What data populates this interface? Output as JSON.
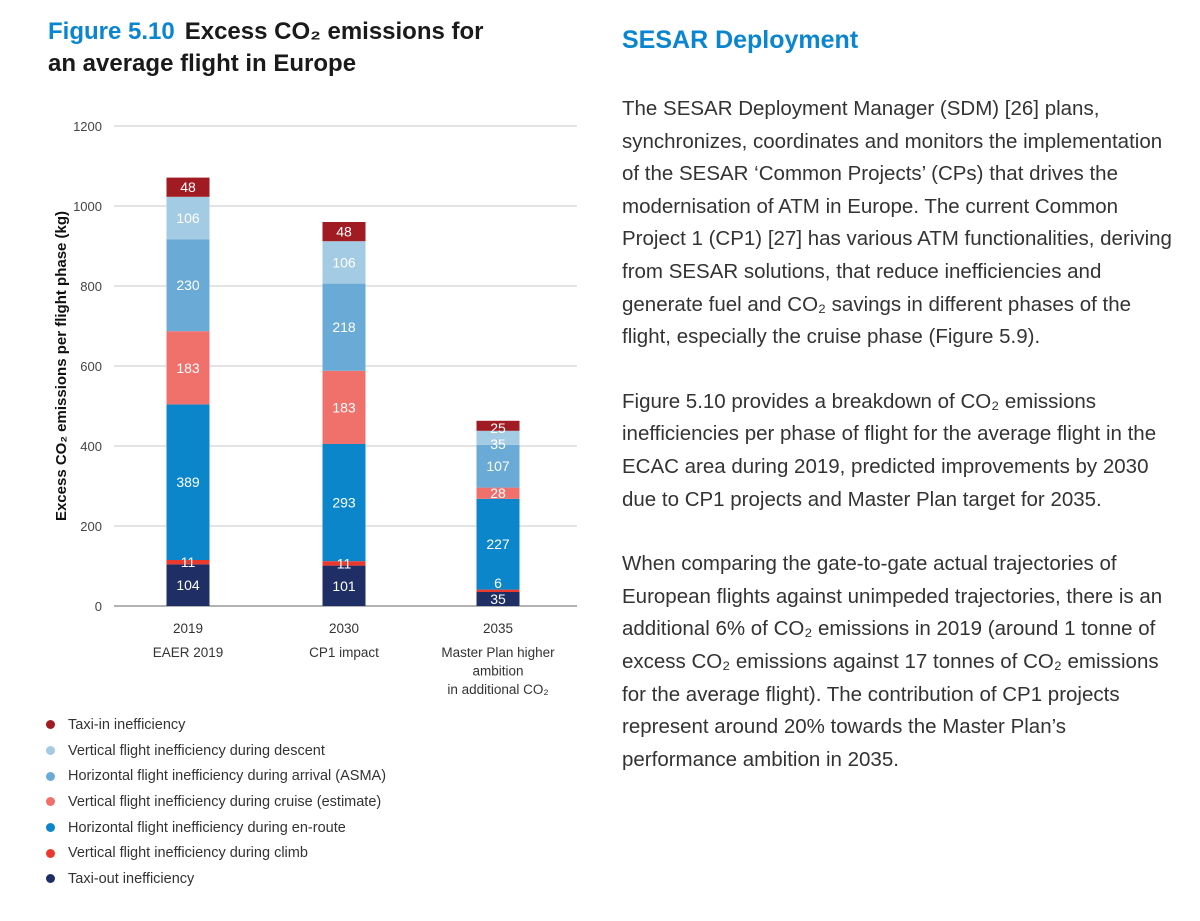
{
  "figure": {
    "number": "Figure 5.10",
    "title": "Excess CO₂ emissions for an average flight in Europe"
  },
  "chart_data": {
    "type": "stacked-bar",
    "ylabel": "Excess CO₂ emissions per flight phase (kg)",
    "ylim": [
      0,
      1200
    ],
    "yticks": [
      0,
      200,
      400,
      600,
      800,
      1000,
      1200
    ],
    "grid": true,
    "legend_position": "bottom",
    "categories": [
      {
        "year": "2019",
        "label": "EAER 2019"
      },
      {
        "year": "2030",
        "label": "CP1 impact"
      },
      {
        "year": "2035",
        "label": "Master Plan higher ambition in additional CO₂"
      }
    ],
    "series": [
      {
        "name": "Taxi-out inefficiency",
        "color": "#1f2f66",
        "values": [
          104,
          101,
          35
        ]
      },
      {
        "name": "Vertical flight inefficiency during climb",
        "color": "#ea3a2e",
        "values": [
          11,
          11,
          6
        ]
      },
      {
        "name": "Horizontal flight inefficiency during en-route",
        "color": "#0b86cb",
        "values": [
          389,
          293,
          227
        ]
      },
      {
        "name": "Vertical flight inefficiency during cruise (estimate)",
        "color": "#f0706c",
        "values": [
          183,
          183,
          28
        ]
      },
      {
        "name": "Horizontal flight inefficiency during arrival (ASMA)",
        "color": "#69abd6",
        "values": [
          230,
          218,
          107
        ]
      },
      {
        "name": "Vertical flight inefficiency during descent",
        "color": "#a3cbe3",
        "values": [
          106,
          106,
          35
        ]
      },
      {
        "name": "Taxi-in inefficiency",
        "color": "#a11b22",
        "values": [
          48,
          48,
          25
        ]
      }
    ]
  },
  "article": {
    "title": "SESAR Deployment",
    "paragraphs": [
      "The SESAR Deployment Manager (SDM) [26] plans, synchronizes, coordinates and monitors the implementation of the SESAR ‘Common Projects’ (CPs) that drives the modernisation of ATM in Europe. The current Common Project 1 (CP1) [27] has various ATM functionalities, deriving from SESAR solutions, that reduce inefficiencies and generate fuel and CO₂ savings in different phases of the flight, especially the cruise phase (Figure 5.9).",
      "Figure 5.10 provides a breakdown of CO₂ emissions inefficiencies per phase of flight for the average flight in the ECAC area during 2019, predicted improvements by 2030 due to CP1 projects and Master Plan target for 2035.",
      "When comparing the gate-to-gate actual trajectories of European flights against unimpeded trajectories, there is an additional 6% of CO₂ emissions in 2019 (around 1 tonne of excess CO₂ emissions against 17 tonnes of CO₂ emissions for the average flight). The contribution of CP1 projects represent around 20% towards the Master Plan’s performance ambition in 2035."
    ]
  }
}
